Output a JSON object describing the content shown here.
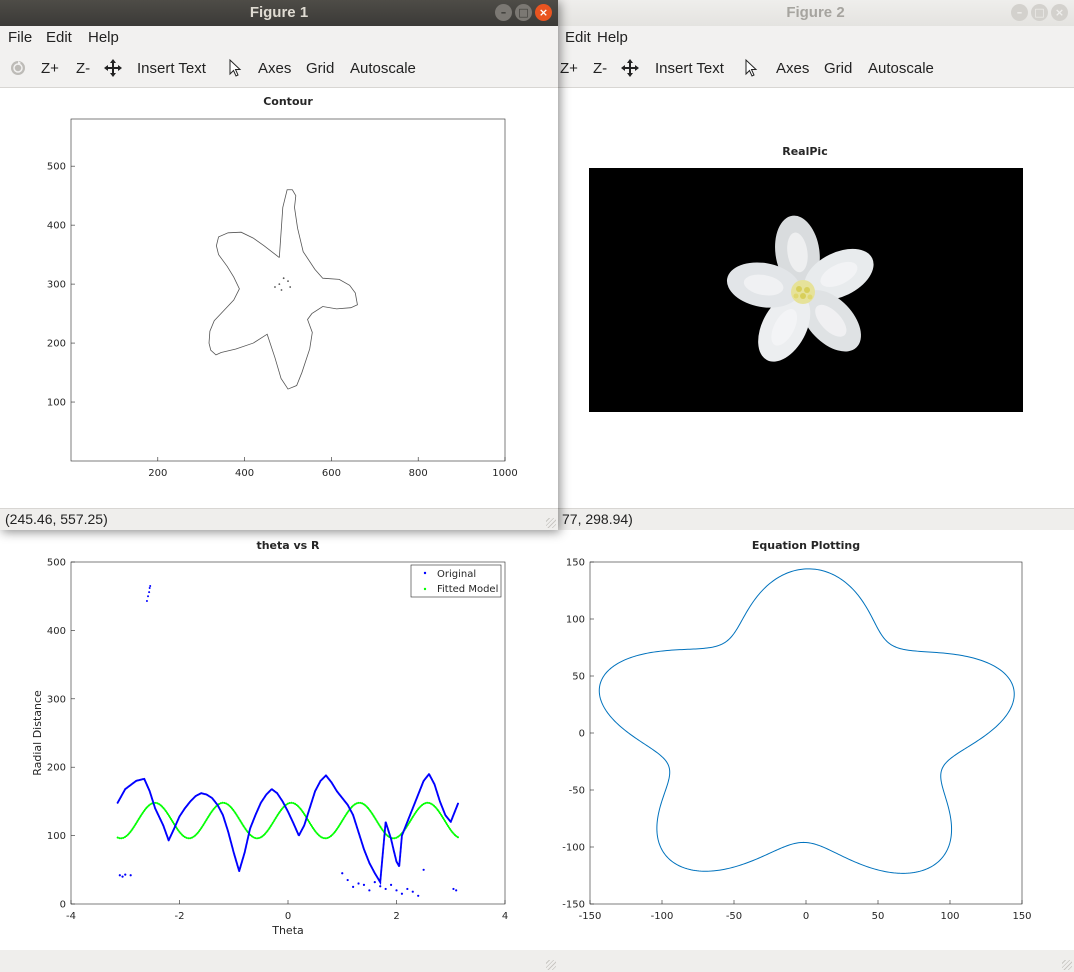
{
  "colors": {
    "original": "#0000ff",
    "fitted": "#00ff00",
    "equation": "#0072bd"
  },
  "figure1": {
    "title": "Figure 1",
    "menu": [
      "File",
      "Edit",
      "Help"
    ],
    "toolbar": {
      "zoom_in": "Z+",
      "zoom_out": "Z-",
      "insert_text": "Insert Text",
      "axes": "Axes",
      "grid": "Grid",
      "autoscale": "Autoscale"
    },
    "status": "(245.46, 557.25)"
  },
  "figure2": {
    "title": "Figure 2",
    "menu": [
      "Edit",
      "Help"
    ],
    "toolbar": {
      "zoom_in": "Z+",
      "zoom_out": "Z-",
      "insert_text": "Insert Text",
      "axes": "Axes",
      "grid": "Grid",
      "autoscale": "Autoscale"
    },
    "status": "77, 298.94)"
  },
  "chart_data": [
    {
      "id": "contour",
      "type": "line",
      "title": "Contour",
      "xlim": [
        0,
        1000
      ],
      "ylim": [
        0,
        580
      ],
      "xticks": [
        200,
        400,
        600,
        800,
        1000
      ],
      "yticks": [
        100,
        200,
        300,
        400,
        500
      ],
      "series": [
        {
          "x": [
            480,
            445,
            420,
            392,
            362,
            340,
            335,
            340,
            360,
            375,
            388,
            375,
            352,
            330,
            320,
            318,
            322,
            334,
            346,
            380,
            420,
            452,
            470,
            484,
            500,
            520,
            532,
            550,
            556,
            545,
            555,
            580,
            612,
            645,
            660,
            655,
            642,
            618,
            580,
            562,
            535,
            522,
            515,
            518,
            510,
            498,
            488,
            480
          ],
          "y": [
            345,
            365,
            378,
            388,
            387,
            380,
            365,
            350,
            330,
            312,
            292,
            273,
            255,
            238,
            220,
            200,
            188,
            180,
            184,
            190,
            200,
            215,
            175,
            140,
            122,
            128,
            150,
            190,
            218,
            240,
            250,
            262,
            258,
            260,
            265,
            285,
            298,
            308,
            310,
            325,
            355,
            395,
            430,
            450,
            460,
            460,
            430,
            345
          ]
        }
      ]
    },
    {
      "id": "realpic",
      "type": "other",
      "title": "RealPic"
    },
    {
      "id": "theta_vs_r",
      "type": "scatter",
      "title": "theta vs R",
      "xlabel": "Theta",
      "ylabel": "Radial Distance",
      "xlim": [
        -4,
        4
      ],
      "ylim": [
        0,
        500
      ],
      "xticks": [
        -4,
        -2,
        0,
        2,
        4
      ],
      "yticks": [
        0,
        100,
        200,
        300,
        400,
        500
      ],
      "legend_position": "top-right",
      "series": [
        {
          "name": "Original",
          "x": [
            -3.14,
            -3.0,
            -2.8,
            -2.65,
            -2.55,
            -2.45,
            -2.3,
            -2.2,
            -2.1,
            -2.0,
            -1.9,
            -1.8,
            -1.7,
            -1.6,
            -1.5,
            -1.4,
            -1.3,
            -1.2,
            -1.1,
            -1.0,
            -0.9,
            -0.8,
            -0.7,
            -0.6,
            -0.5,
            -0.4,
            -0.3,
            -0.2,
            -0.1,
            0.0,
            0.1,
            0.2,
            0.3,
            0.4,
            0.5,
            0.6,
            0.7,
            0.8,
            0.9,
            1.0,
            1.1,
            1.2,
            1.3,
            1.4,
            1.5,
            1.6,
            1.7,
            1.8,
            1.9,
            1.95,
            2.0,
            2.05,
            2.1,
            2.2,
            2.3,
            2.4,
            2.5,
            2.6,
            2.7,
            2.8,
            2.9,
            3.0,
            3.1,
            3.14
          ],
          "y": [
            148,
            168,
            180,
            183,
            165,
            140,
            115,
            93,
            110,
            128,
            140,
            150,
            158,
            162,
            160,
            155,
            145,
            130,
            105,
            75,
            48,
            75,
            110,
            130,
            148,
            160,
            168,
            162,
            150,
            135,
            118,
            100,
            115,
            140,
            165,
            180,
            188,
            178,
            165,
            155,
            145,
            130,
            105,
            80,
            60,
            45,
            32,
            120,
            95,
            78,
            62,
            55,
            100,
            120,
            140,
            160,
            180,
            190,
            175,
            150,
            130,
            120,
            140,
            148
          ]
        },
        {
          "name": "Original",
          "x": [
            -2.6,
            -2.58,
            -2.56,
            -2.55,
            -2.54
          ],
          "y": [
            443,
            450,
            456,
            462,
            465
          ]
        },
        {
          "name": "Original",
          "x": [
            -3.1,
            -3.05,
            -3.0,
            -2.9,
            1.0,
            1.1,
            1.2,
            1.3,
            1.4,
            1.5,
            1.6,
            1.7,
            1.8,
            1.9,
            2.0,
            2.1,
            2.2,
            2.3,
            2.4,
            2.5,
            3.05,
            3.1
          ],
          "y": [
            42,
            40,
            43,
            42,
            45,
            35,
            25,
            30,
            28,
            20,
            32,
            26,
            22,
            28,
            20,
            15,
            22,
            18,
            12,
            50,
            22,
            20
          ]
        },
        {
          "name": "Fitted Model",
          "model": {
            "mean": 122,
            "amplitude": 26,
            "frequency": 5,
            "phase": -0.3
          },
          "x_start": -3.14,
          "x_end": 3.14
        }
      ]
    },
    {
      "id": "equation_plotting",
      "type": "line",
      "title": "Equation Plotting",
      "xlim": [
        -150,
        150
      ],
      "ylim": [
        -150,
        150
      ],
      "xticks": [
        -150,
        -100,
        -50,
        0,
        50,
        100,
        150
      ],
      "yticks": [
        -150,
        -100,
        -50,
        0,
        50,
        100,
        150
      ],
      "equation": {
        "base": 100,
        "amplitude": 20,
        "lobes": 5,
        "scale_x": 1.25,
        "scale_y": 1.2,
        "phase": 0.3
      }
    }
  ]
}
